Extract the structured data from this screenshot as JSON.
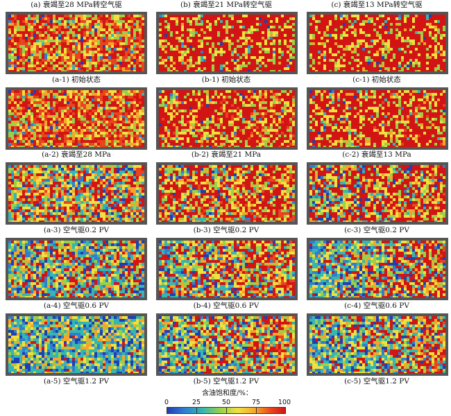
{
  "columns": [
    {
      "title": "(a) 衰竭至28 MPa转空气驱",
      "panels": [
        "(a-1) 初始状态",
        "(a-2) 衰竭至28 MPa",
        "(a-3) 空气驱0.2 PV",
        "(a-4) 空气驱0.6 PV",
        "(a-5) 空气驱1.2 PV"
      ]
    },
    {
      "title": "(b) 衰竭至21 MPa转空气驱",
      "panels": [
        "(b-1) 初始状态",
        "(b-2) 衰竭至21 MPa",
        "(b-3) 空气驱0.2 PV",
        "(b-4) 空气驱0.6 PV",
        "(b-5) 空气驱1.2 PV"
      ]
    },
    {
      "title": "(c) 衰竭至13 MPa转空气驱",
      "panels": [
        "(c-1) 初始状态",
        "(c-2) 衰竭至13 MPa",
        "(c-3) 空气驱0.2 PV",
        "(c-4) 空气驱0.6 PV",
        "(c-5) 空气驱1.2 PV"
      ]
    }
  ],
  "legend": {
    "title": "含油饱和度/%：",
    "ticks": [
      "0",
      "25",
      "50",
      "75",
      "100"
    ],
    "colors": [
      "#1f3fb4",
      "#2f7fd0",
      "#35b6b0",
      "#9ad04a",
      "#f0e040",
      "#f6a42a",
      "#e8441e",
      "#d21414"
    ]
  }
}
